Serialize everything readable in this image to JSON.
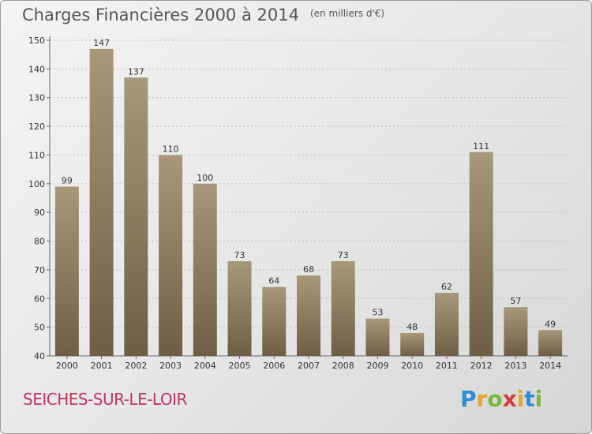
{
  "title": "Charges Financières 2000 à 2014",
  "unit": "(en milliers d'€)",
  "commune": "SEICHES-SUR-LE-LOIR",
  "brand": {
    "letters": [
      "P",
      "r",
      "o",
      "x",
      "i",
      "t",
      "i"
    ],
    "colors": [
      "#2a8fd6",
      "#e8a52a",
      "#79b83a",
      "#d63b3b",
      "#e8a52a",
      "#2a8fd6",
      "#79b83a"
    ]
  },
  "colors": {
    "bar": "#8c7a5e",
    "bar_light": "#a8987a",
    "bar_dark": "#6e5e45",
    "axis": "#666666",
    "grid": "#bdbdbd",
    "label": "#333333"
  },
  "chart_data": {
    "type": "bar",
    "categories": [
      "2000",
      "2001",
      "2002",
      "2003",
      "2004",
      "2005",
      "2006",
      "2007",
      "2008",
      "2009",
      "2010",
      "2011",
      "2012",
      "2013",
      "2014"
    ],
    "values": [
      99,
      147,
      137,
      110,
      100,
      73,
      64,
      68,
      73,
      53,
      48,
      62,
      111,
      57,
      49
    ],
    "ylim": [
      40,
      150
    ],
    "yticks": [
      40,
      50,
      60,
      70,
      80,
      90,
      100,
      110,
      120,
      130,
      140,
      150
    ],
    "grid": true,
    "xlabel": "",
    "ylabel": ""
  }
}
